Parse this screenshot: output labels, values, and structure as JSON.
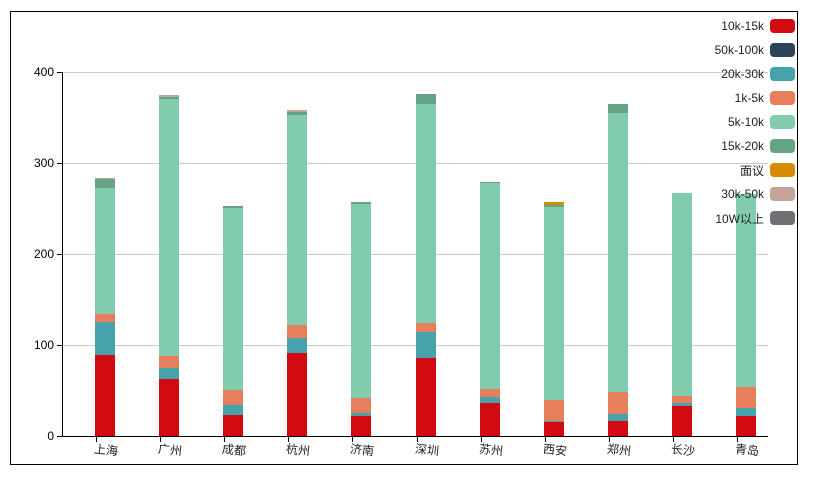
{
  "chart_data": {
    "type": "bar",
    "stacked": true,
    "title": "",
    "xlabel": "",
    "ylabel": "",
    "ylim": [
      0,
      400
    ],
    "yticks": [
      0,
      100,
      200,
      300,
      400
    ],
    "grid": true,
    "legend_position": "top-right",
    "categories": [
      "上海",
      "广州",
      "成都",
      "杭州",
      "济南",
      "深圳",
      "苏州",
      "西安",
      "郑州",
      "长沙",
      "青岛"
    ],
    "series": [
      {
        "name": "10k-15k",
        "color": "#d20a11",
        "values": [
          89,
          63,
          23,
          91,
          22,
          86,
          36,
          15,
          17,
          33,
          22
        ]
      },
      {
        "name": "50k-100k",
        "color": "#2b4457",
        "values": [
          0,
          0,
          0,
          0,
          0,
          0,
          0,
          0,
          0,
          0,
          0
        ]
      },
      {
        "name": "20k-30k",
        "color": "#46a2ab",
        "values": [
          36,
          12,
          11,
          17,
          3,
          28,
          7,
          1,
          7,
          3,
          9
        ]
      },
      {
        "name": "1k-5k",
        "color": "#e87f5c",
        "values": [
          9,
          13,
          17,
          14,
          17,
          10,
          9,
          24,
          24,
          8,
          23
        ]
      },
      {
        "name": "5k-10k",
        "color": "#80ccad",
        "values": [
          139,
          282,
          200,
          231,
          213,
          241,
          226,
          212,
          307,
          223,
          212
        ]
      },
      {
        "name": "15k-20k",
        "color": "#64a383",
        "values": [
          9,
          3,
          2,
          3,
          2,
          11,
          1,
          2,
          10,
          0,
          0
        ]
      },
      {
        "name": "面议",
        "color": "#d68b00",
        "values": [
          0,
          0,
          0,
          0,
          0,
          0,
          0,
          3,
          0,
          0,
          0
        ]
      },
      {
        "name": "30k-50k",
        "color": "#c4a398",
        "values": [
          1,
          2,
          0,
          2,
          0,
          0,
          0,
          0,
          0,
          0,
          0
        ]
      },
      {
        "name": "10W以上",
        "color": "#6e7074",
        "values": [
          0,
          0,
          0,
          0,
          0,
          0,
          0,
          0,
          0,
          0,
          0
        ]
      }
    ]
  },
  "legend": [
    {
      "label": "10k-15k",
      "color": "#d20a11"
    },
    {
      "label": "50k-100k",
      "color": "#2b4457"
    },
    {
      "label": "20k-30k",
      "color": "#46a2ab"
    },
    {
      "label": "1k-5k",
      "color": "#e87f5c"
    },
    {
      "label": "5k-10k",
      "color": "#80ccad"
    },
    {
      "label": "15k-20k",
      "color": "#64a383"
    },
    {
      "label": "面议",
      "color": "#d68b00"
    },
    {
      "label": "30k-50k",
      "color": "#c4a398"
    },
    {
      "label": "10W以上",
      "color": "#6e7074"
    }
  ],
  "axis": {
    "y_labels": [
      "0",
      "100",
      "200",
      "300",
      "400"
    ]
  }
}
